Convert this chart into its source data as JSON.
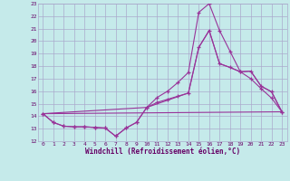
{
  "xlabel": "Windchill (Refroidissement éolien,°C)",
  "bg_color": "#c5eaea",
  "grid_color": "#aaaacc",
  "line_color": "#993399",
  "xlim": [
    -0.5,
    23.5
  ],
  "ylim": [
    12,
    23
  ],
  "xticks": [
    0,
    1,
    2,
    3,
    4,
    5,
    6,
    7,
    8,
    9,
    10,
    11,
    12,
    13,
    14,
    15,
    16,
    17,
    18,
    19,
    20,
    21,
    22,
    23
  ],
  "yticks": [
    12,
    13,
    14,
    15,
    16,
    17,
    18,
    19,
    20,
    21,
    22,
    23
  ],
  "line1_x": [
    0,
    1,
    2,
    3,
    4,
    5,
    6,
    7,
    8,
    9,
    10,
    11,
    12,
    13,
    14,
    15,
    16,
    17,
    18,
    19,
    20,
    21,
    22,
    23
  ],
  "line1_y": [
    14.2,
    13.5,
    13.2,
    13.15,
    13.15,
    13.1,
    13.05,
    12.4,
    13.05,
    13.5,
    14.7,
    15.1,
    15.35,
    15.6,
    15.85,
    19.5,
    20.85,
    18.2,
    17.9,
    17.55,
    17.6,
    16.4,
    15.95,
    14.35
  ],
  "line2_x": [
    0,
    1,
    2,
    3,
    4,
    5,
    6,
    7,
    8,
    9,
    10,
    11,
    12,
    13,
    14,
    15,
    16,
    17,
    18,
    19,
    20,
    21,
    22,
    23
  ],
  "line2_y": [
    14.2,
    13.5,
    13.2,
    13.15,
    13.15,
    13.1,
    13.05,
    12.4,
    13.05,
    13.5,
    14.7,
    15.5,
    16.0,
    16.7,
    17.5,
    22.3,
    23.0,
    20.85,
    19.2,
    17.55,
    17.0,
    16.2,
    15.45,
    14.35
  ],
  "line3_x": [
    0,
    23
  ],
  "line3_y": [
    14.2,
    14.35
  ],
  "line4_x": [
    0,
    10,
    14,
    15,
    16,
    17,
    18,
    19,
    20,
    21,
    22,
    23
  ],
  "line4_y": [
    14.2,
    14.7,
    15.85,
    19.5,
    20.85,
    18.2,
    17.9,
    17.55,
    17.6,
    16.4,
    15.95,
    14.35
  ]
}
